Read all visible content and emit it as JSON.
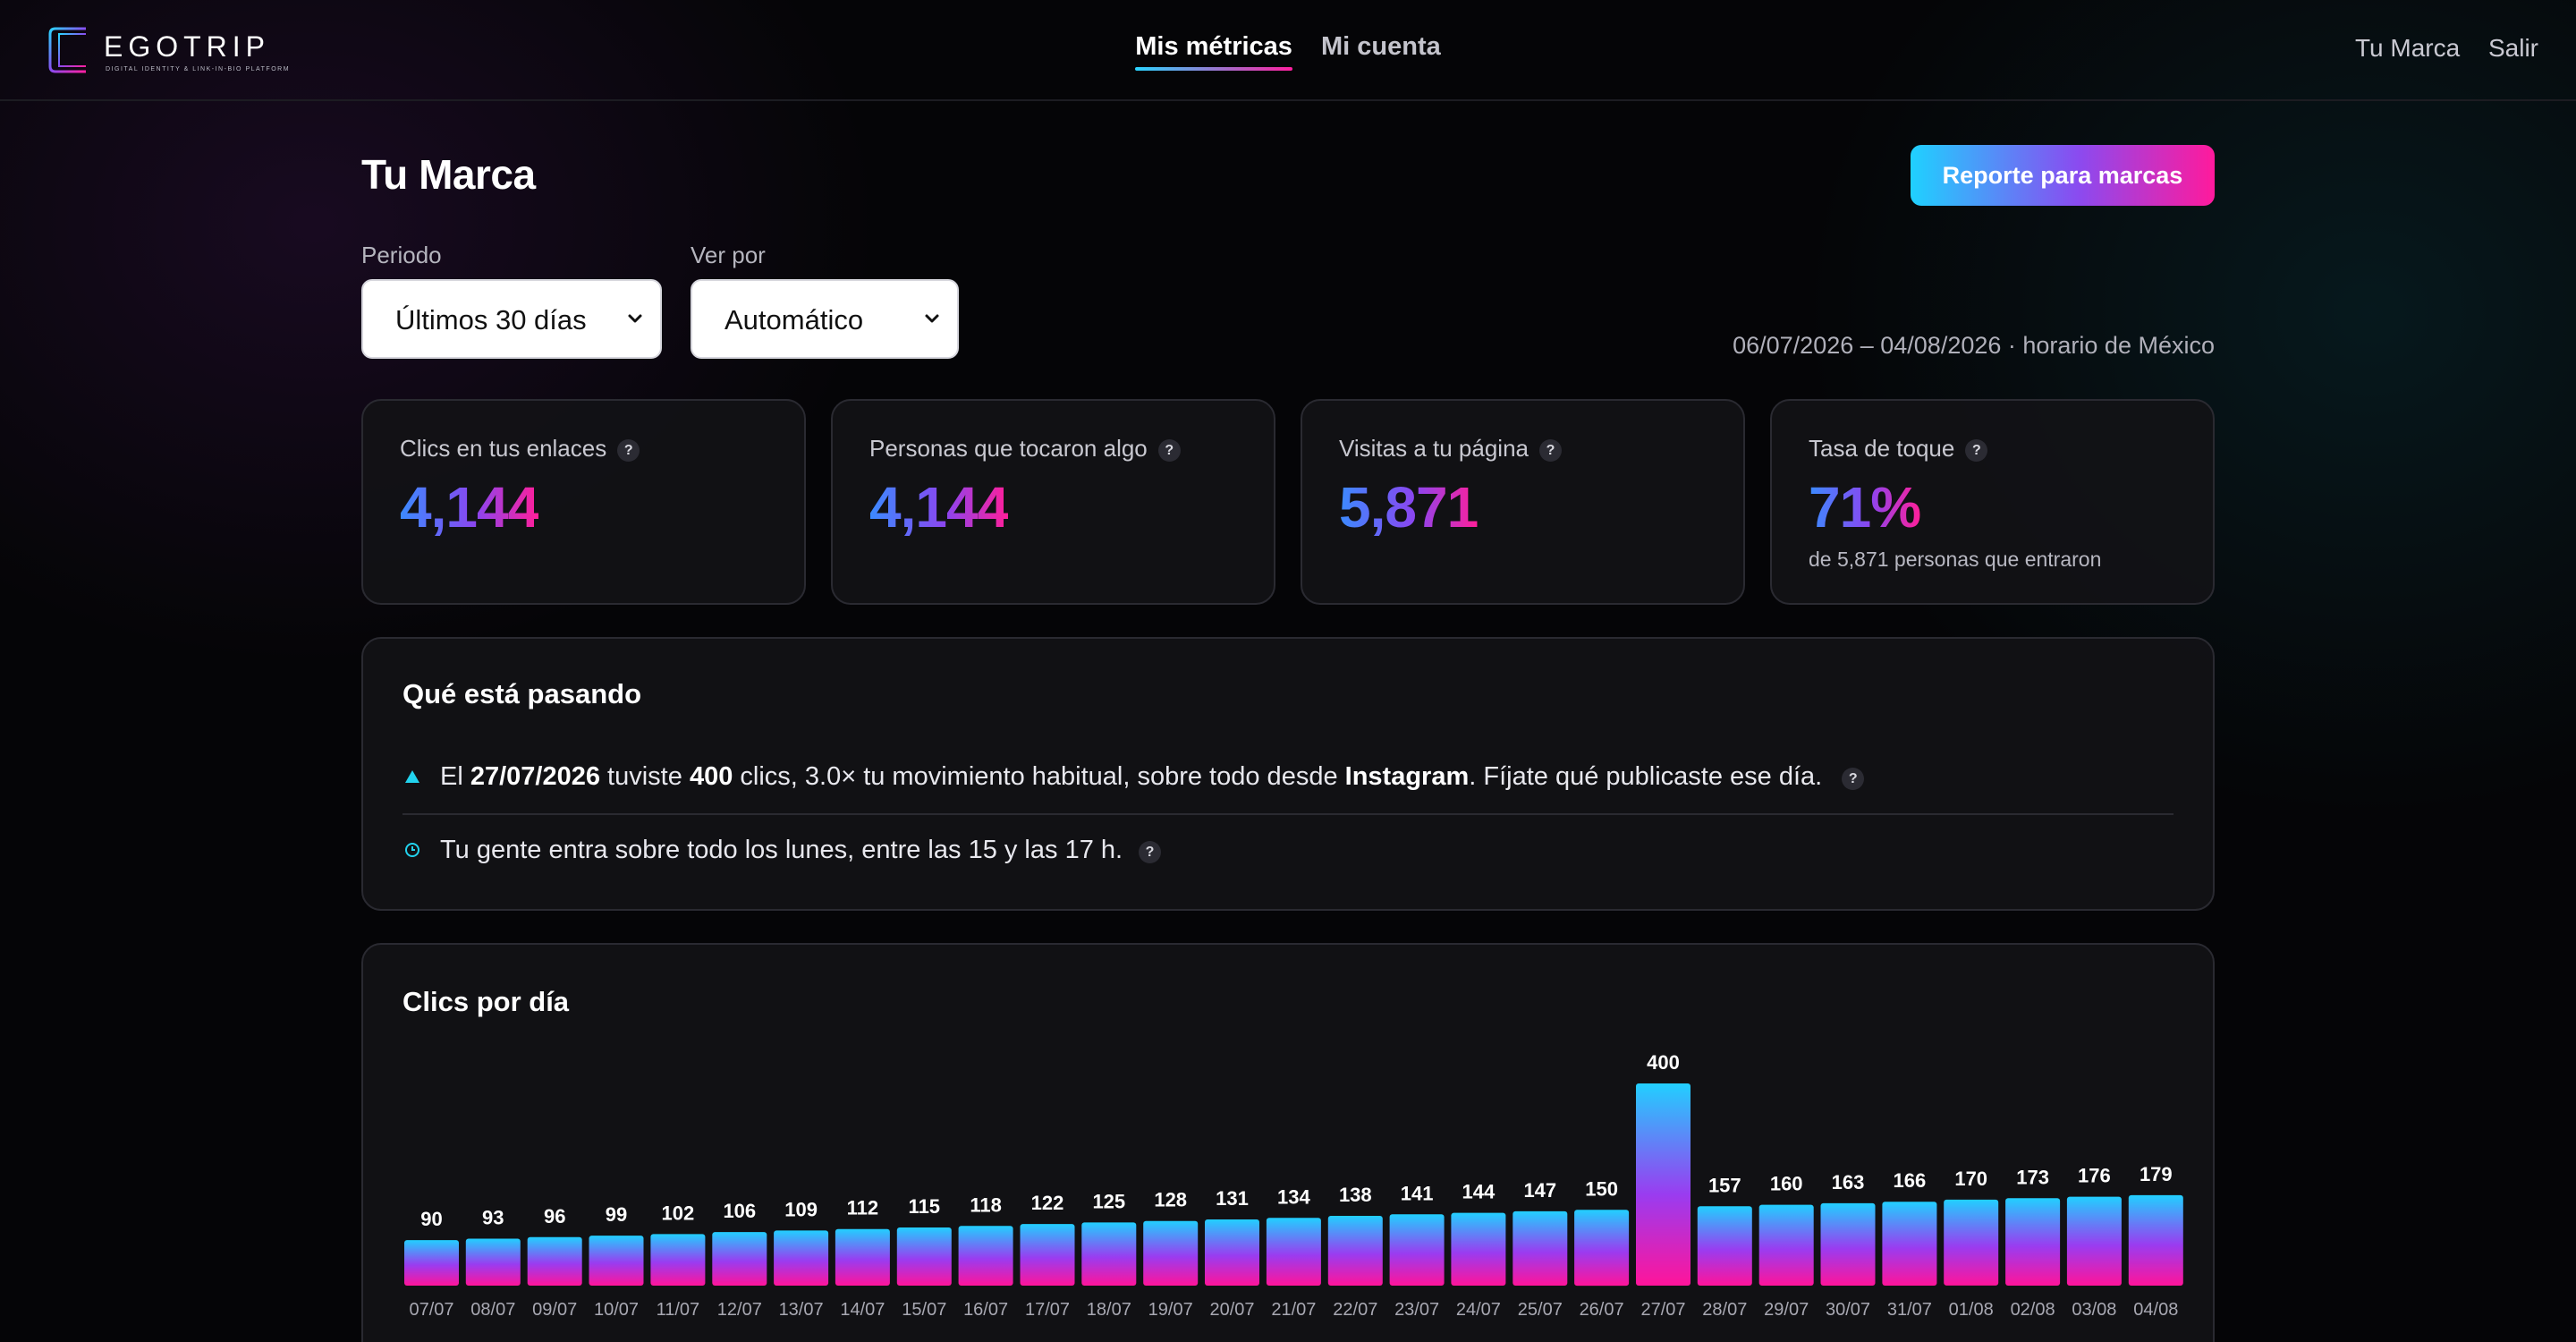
{
  "brand": {
    "name": "EGOTRIP",
    "tagline": "DIGITAL IDENTITY & LINK-IN-BIO PLATFORM"
  },
  "nav": {
    "metrics": "Mis métricas",
    "account": "Mi cuenta",
    "brand_link": "Tu Marca",
    "logout": "Salir"
  },
  "page": {
    "title": "Tu Marca",
    "report_button": "Reporte para marcas",
    "period_label": "Periodo",
    "period_value": "Últimos 30 días",
    "view_label": "Ver por",
    "view_value": "Automático",
    "date_range": "06/07/2026 – 04/08/2026 · horario de México"
  },
  "kpis": [
    {
      "label": "Clics en tus enlaces",
      "value": "4,144"
    },
    {
      "label": "Personas que tocaron algo",
      "value": "4,144"
    },
    {
      "label": "Visitas a tu página",
      "value": "5,871"
    },
    {
      "label": "Tasa de toque",
      "value": "71%",
      "sub": "de 5,871 personas que entraron"
    }
  ],
  "insights": {
    "title": "Qué está pasando",
    "row1": {
      "p1": "El ",
      "date": "27/07/2026",
      "p2": " tuviste ",
      "clicks": "400",
      "p3": " clics, 3.0× tu movimiento habitual, sobre todo desde ",
      "source": "Instagram",
      "p4": ". Fíjate qué publicaste ese día."
    },
    "row2": "Tu gente entra sobre todo los lunes, entre las 15 y las 17 h."
  },
  "colors": {
    "accent_cyan": "#1fd1ff",
    "accent_purple": "#8a4bf0",
    "accent_pink": "#ff1a9c",
    "card_bg": "#121216"
  },
  "chart_data": {
    "type": "bar",
    "title": "Clics por día",
    "categories": [
      "07/07",
      "08/07",
      "09/07",
      "10/07",
      "11/07",
      "12/07",
      "13/07",
      "14/07",
      "15/07",
      "16/07",
      "17/07",
      "18/07",
      "19/07",
      "20/07",
      "21/07",
      "22/07",
      "23/07",
      "24/07",
      "25/07",
      "26/07",
      "27/07",
      "28/07",
      "29/07",
      "30/07",
      "31/07",
      "01/08",
      "02/08",
      "03/08",
      "04/08"
    ],
    "values": [
      90,
      93,
      96,
      99,
      102,
      106,
      109,
      112,
      115,
      118,
      122,
      125,
      128,
      131,
      134,
      138,
      141,
      144,
      147,
      150,
      400,
      157,
      160,
      163,
      166,
      170,
      173,
      176,
      179
    ],
    "ylim": [
      0,
      400
    ],
    "grid": false,
    "data_labels": true
  }
}
